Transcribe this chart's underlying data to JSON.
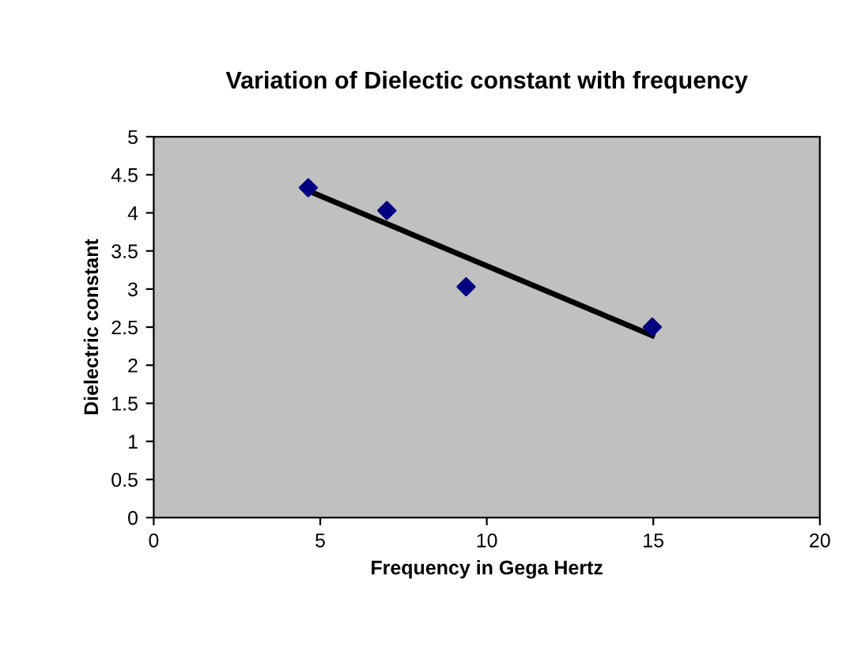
{
  "chart_data": {
    "type": "scatter",
    "title": "Variation of Dielectic constant with frequency",
    "xlabel": "Frequency in Gega Hertz",
    "ylabel": "Dielectric constant",
    "series": [
      {
        "color": "#000080",
        "marker": "diamond",
        "x": [
          4.64,
          7.0,
          9.38,
          14.97
        ],
        "values": [
          4.33,
          4.03,
          3.03,
          2.5
        ]
      },
      {
        "type": "line",
        "color": "#000000",
        "marker": "none",
        "line_style": "solid",
        "x": [
          4.64,
          14.97
        ],
        "values": [
          4.29,
          2.39
        ]
      }
    ],
    "xlim": [
      0,
      20
    ],
    "xticks": [
      0,
      5,
      10,
      15,
      20
    ],
    "ylim": [
      0,
      5
    ],
    "yticks": [
      0,
      0.5,
      1,
      1.5,
      2,
      2.5,
      3,
      3.5,
      4,
      4.5,
      5
    ],
    "grid": false,
    "legend": false
  }
}
